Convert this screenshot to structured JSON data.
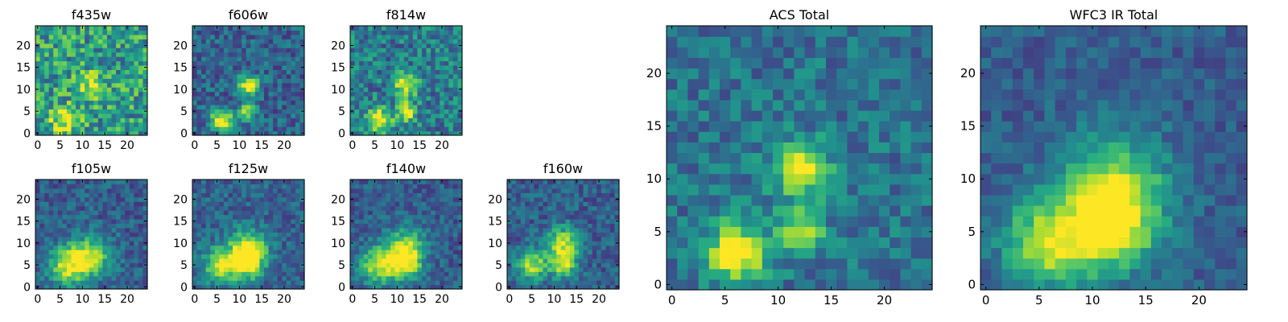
{
  "panels": [
    {
      "id": "f435w",
      "title": "f435w",
      "xticks": [
        "0",
        "5",
        "10",
        "15",
        "20"
      ],
      "yticks": [
        "0",
        "5",
        "10",
        "15",
        "20"
      ],
      "blobs": [
        {
          "x": 6,
          "y": 3,
          "a": 0.45,
          "s": 2.2
        },
        {
          "x": 12,
          "y": 11,
          "a": 0.35,
          "s": 2.2
        }
      ],
      "base": 0.55,
      "noise": 0.55,
      "seed": 11
    },
    {
      "id": "f606w",
      "title": "f606w",
      "xticks": [
        "0",
        "5",
        "10",
        "15",
        "20"
      ],
      "yticks": [
        "0",
        "5",
        "10",
        "15",
        "20"
      ],
      "blobs": [
        {
          "x": 6,
          "y": 3,
          "a": 0.75,
          "s": 1.8
        },
        {
          "x": 12,
          "y": 11,
          "a": 0.7,
          "s": 1.6
        },
        {
          "x": 12,
          "y": 5,
          "a": 0.6,
          "s": 1.4
        }
      ],
      "base": 0.32,
      "noise": 0.35,
      "seed": 22
    },
    {
      "id": "f814w",
      "title": "f814w",
      "xticks": [
        "0",
        "5",
        "10",
        "15",
        "20"
      ],
      "yticks": [
        "0",
        "5",
        "10",
        "15",
        "20"
      ],
      "blobs": [
        {
          "x": 6,
          "y": 3,
          "a": 0.7,
          "s": 1.9
        },
        {
          "x": 12,
          "y": 11,
          "a": 0.65,
          "s": 1.7
        },
        {
          "x": 12,
          "y": 5,
          "a": 0.6,
          "s": 1.5
        }
      ],
      "base": 0.42,
      "noise": 0.45,
      "seed": 33
    },
    {
      "id": "f105w",
      "title": "f105w",
      "xticks": [
        "0",
        "5",
        "10",
        "15",
        "20"
      ],
      "yticks": [
        "0",
        "5",
        "10",
        "15",
        "20"
      ],
      "blobs": [
        {
          "x": 7,
          "y": 5,
          "a": 0.6,
          "s": 3.2
        },
        {
          "x": 12,
          "y": 7,
          "a": 0.5,
          "s": 3.2
        }
      ],
      "base": 0.3,
      "noise": 0.3,
      "seed": 44
    },
    {
      "id": "f125w",
      "title": "f125w",
      "xticks": [
        "0",
        "5",
        "10",
        "15",
        "20"
      ],
      "yticks": [
        "0",
        "5",
        "10",
        "15",
        "20"
      ],
      "blobs": [
        {
          "x": 6,
          "y": 5,
          "a": 0.6,
          "s": 2.8
        },
        {
          "x": 12,
          "y": 9,
          "a": 0.6,
          "s": 3.0
        },
        {
          "x": 12,
          "y": 5,
          "a": 0.5,
          "s": 2.4
        }
      ],
      "base": 0.32,
      "noise": 0.3,
      "seed": 55
    },
    {
      "id": "f140w",
      "title": "f140w",
      "xticks": [
        "0",
        "5",
        "10",
        "15",
        "20"
      ],
      "yticks": [
        "0",
        "5",
        "10",
        "15",
        "20"
      ],
      "blobs": [
        {
          "x": 6,
          "y": 5,
          "a": 0.6,
          "s": 3.0
        },
        {
          "x": 12,
          "y": 9,
          "a": 0.55,
          "s": 3.0
        },
        {
          "x": 12,
          "y": 5,
          "a": 0.5,
          "s": 2.4
        }
      ],
      "base": 0.3,
      "noise": 0.28,
      "seed": 66
    },
    {
      "id": "f160w",
      "title": "f160w",
      "xticks": [
        "0",
        "5",
        "10",
        "15",
        "20"
      ],
      "yticks": [
        "0",
        "5",
        "10",
        "15",
        "20"
      ],
      "blobs": [
        {
          "x": 5,
          "y": 5,
          "a": 0.6,
          "s": 2.4
        },
        {
          "x": 12,
          "y": 10,
          "a": 0.6,
          "s": 2.6
        },
        {
          "x": 12,
          "y": 5,
          "a": 0.55,
          "s": 2.0
        }
      ],
      "base": 0.3,
      "noise": 0.3,
      "seed": 77
    },
    {
      "id": "acs",
      "title": "ACS Total",
      "xticks": [
        "0",
        "5",
        "10",
        "15",
        "20"
      ],
      "yticks": [
        "0",
        "5",
        "10",
        "15",
        "20"
      ],
      "blobs": [
        {
          "x": 6,
          "y": 3,
          "a": 0.75,
          "s": 1.9
        },
        {
          "x": 12,
          "y": 11,
          "a": 0.65,
          "s": 1.8
        },
        {
          "x": 12,
          "y": 5,
          "a": 0.55,
          "s": 1.5
        }
      ],
      "base": 0.38,
      "noise": 0.32,
      "seed": 88
    },
    {
      "id": "wfc3",
      "title": "WFC3 IR Total",
      "xticks": [
        "0",
        "5",
        "10",
        "15",
        "20"
      ],
      "yticks": [
        "0",
        "5",
        "10",
        "15",
        "20"
      ],
      "blobs": [
        {
          "x": 6,
          "y": 4,
          "a": 0.6,
          "s": 3.0
        },
        {
          "x": 12,
          "y": 9,
          "a": 0.6,
          "s": 3.4
        },
        {
          "x": 12,
          "y": 5,
          "a": 0.5,
          "s": 2.6
        }
      ],
      "base": 0.3,
      "noise": 0.22,
      "seed": 99
    }
  ],
  "colormap": [
    "#440154",
    "#472c7a",
    "#3b518b",
    "#2c718e",
    "#21908d",
    "#27ad81",
    "#5cc863",
    "#aadc32",
    "#fde725"
  ],
  "grid_size": 25
}
